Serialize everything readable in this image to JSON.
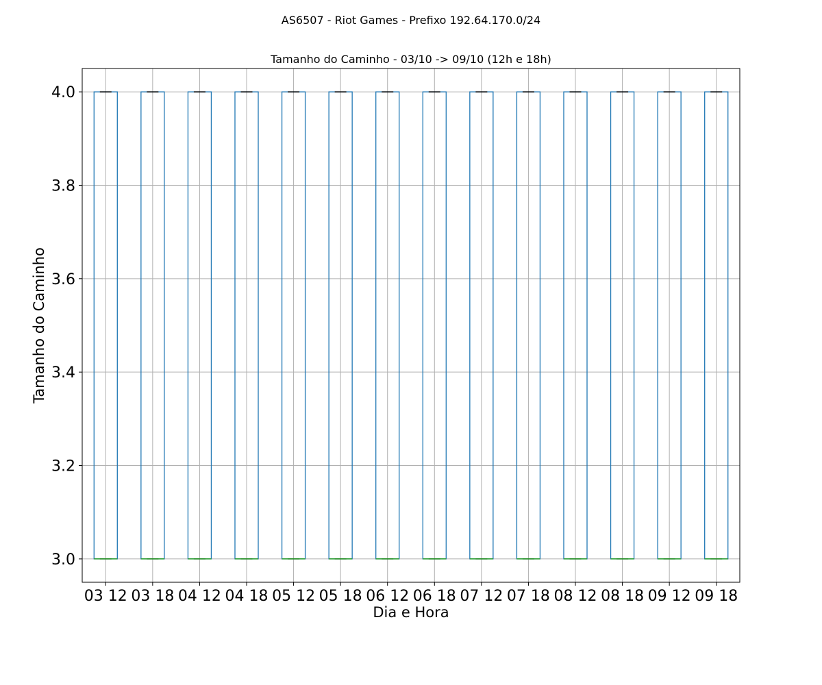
{
  "chart_data": {
    "type": "box",
    "suptitle": "AS6507 - Riot Games - Prefixo 192.64.170.0/24",
    "title": "Tamanho do Caminho - 03/10 -> 09/10 (12h e 18h)",
    "xlabel": "Dia e Hora",
    "ylabel": "Tamanho do Caminho",
    "categories": [
      "03 12",
      "03 18",
      "04 12",
      "04 18",
      "05 12",
      "05 18",
      "06 12",
      "06 18",
      "07 12",
      "07 18",
      "08 12",
      "08 18",
      "09 12",
      "09 18"
    ],
    "boxes": [
      {
        "whisker_low": 3.0,
        "q1": 3.0,
        "median": 3.0,
        "q3": 4.0,
        "whisker_high": 4.0
      },
      {
        "whisker_low": 3.0,
        "q1": 3.0,
        "median": 3.0,
        "q3": 4.0,
        "whisker_high": 4.0
      },
      {
        "whisker_low": 3.0,
        "q1": 3.0,
        "median": 3.0,
        "q3": 4.0,
        "whisker_high": 4.0
      },
      {
        "whisker_low": 3.0,
        "q1": 3.0,
        "median": 3.0,
        "q3": 4.0,
        "whisker_high": 4.0
      },
      {
        "whisker_low": 3.0,
        "q1": 3.0,
        "median": 3.0,
        "q3": 4.0,
        "whisker_high": 4.0
      },
      {
        "whisker_low": 3.0,
        "q1": 3.0,
        "median": 3.0,
        "q3": 4.0,
        "whisker_high": 4.0
      },
      {
        "whisker_low": 3.0,
        "q1": 3.0,
        "median": 3.0,
        "q3": 4.0,
        "whisker_high": 4.0
      },
      {
        "whisker_low": 3.0,
        "q1": 3.0,
        "median": 3.0,
        "q3": 4.0,
        "whisker_high": 4.0
      },
      {
        "whisker_low": 3.0,
        "q1": 3.0,
        "median": 3.0,
        "q3": 4.0,
        "whisker_high": 4.0
      },
      {
        "whisker_low": 3.0,
        "q1": 3.0,
        "median": 3.0,
        "q3": 4.0,
        "whisker_high": 4.0
      },
      {
        "whisker_low": 3.0,
        "q1": 3.0,
        "median": 3.0,
        "q3": 4.0,
        "whisker_high": 4.0
      },
      {
        "whisker_low": 3.0,
        "q1": 3.0,
        "median": 3.0,
        "q3": 4.0,
        "whisker_high": 4.0
      },
      {
        "whisker_low": 3.0,
        "q1": 3.0,
        "median": 3.0,
        "q3": 4.0,
        "whisker_high": 4.0
      },
      {
        "whisker_low": 3.0,
        "q1": 3.0,
        "median": 3.0,
        "q3": 4.0,
        "whisker_high": 4.0
      }
    ],
    "yticks": [
      "3.0",
      "3.2",
      "3.4",
      "3.6",
      "3.8",
      "4.0"
    ],
    "ylim": [
      2.95,
      4.05
    ],
    "grid": true,
    "colors": {
      "box": "#1f77b4",
      "median": "#2ca02c",
      "whisker_cap": "#000000",
      "grid": "#b0b0b0"
    }
  }
}
